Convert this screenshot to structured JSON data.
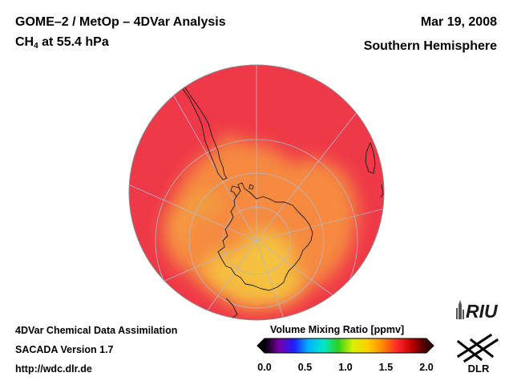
{
  "header": {
    "title": "GOME–2 / MetOp – 4DVar Analysis",
    "species_main": "CH",
    "species_sub": "4",
    "species_level": " at 55.4 hPa",
    "date": "Mar 19, 2008",
    "region": "Southern Hemisphere"
  },
  "footer": {
    "line1": "4DVar Chemical Data Assimilation",
    "line2": "SACADA Version 1.7",
    "line3": "http://wdc.dlr.de"
  },
  "colorbar": {
    "label": "Volume Mixing Ratio [ppmv]",
    "ticks": [
      "0.0",
      "0.5",
      "1.0",
      "1.5",
      "2.0"
    ],
    "tick_values": [
      0.0,
      0.5,
      1.0,
      1.5,
      2.0
    ],
    "range": [
      0.0,
      2.0
    ],
    "colors": [
      "#000000",
      "#7a00a8",
      "#1e1eff",
      "#00b4ff",
      "#00e8c8",
      "#30d020",
      "#d8f000",
      "#ffd000",
      "#ff8a00",
      "#ff2a2a",
      "#c00000",
      "#3a0000"
    ]
  },
  "map": {
    "projection": "orthographic",
    "center": "South Pole",
    "field": "methane volume mixing ratio",
    "field_range_ppmv": [
      1.45,
      1.8
    ],
    "colors": {
      "high": "#ef3848",
      "mid": "#f58a40",
      "low": "#f5be40",
      "coastline": "#1a1a1a",
      "graticule": "#b7b7c7"
    }
  },
  "logos": {
    "riu": "RIU",
    "dlr": "DLR"
  }
}
